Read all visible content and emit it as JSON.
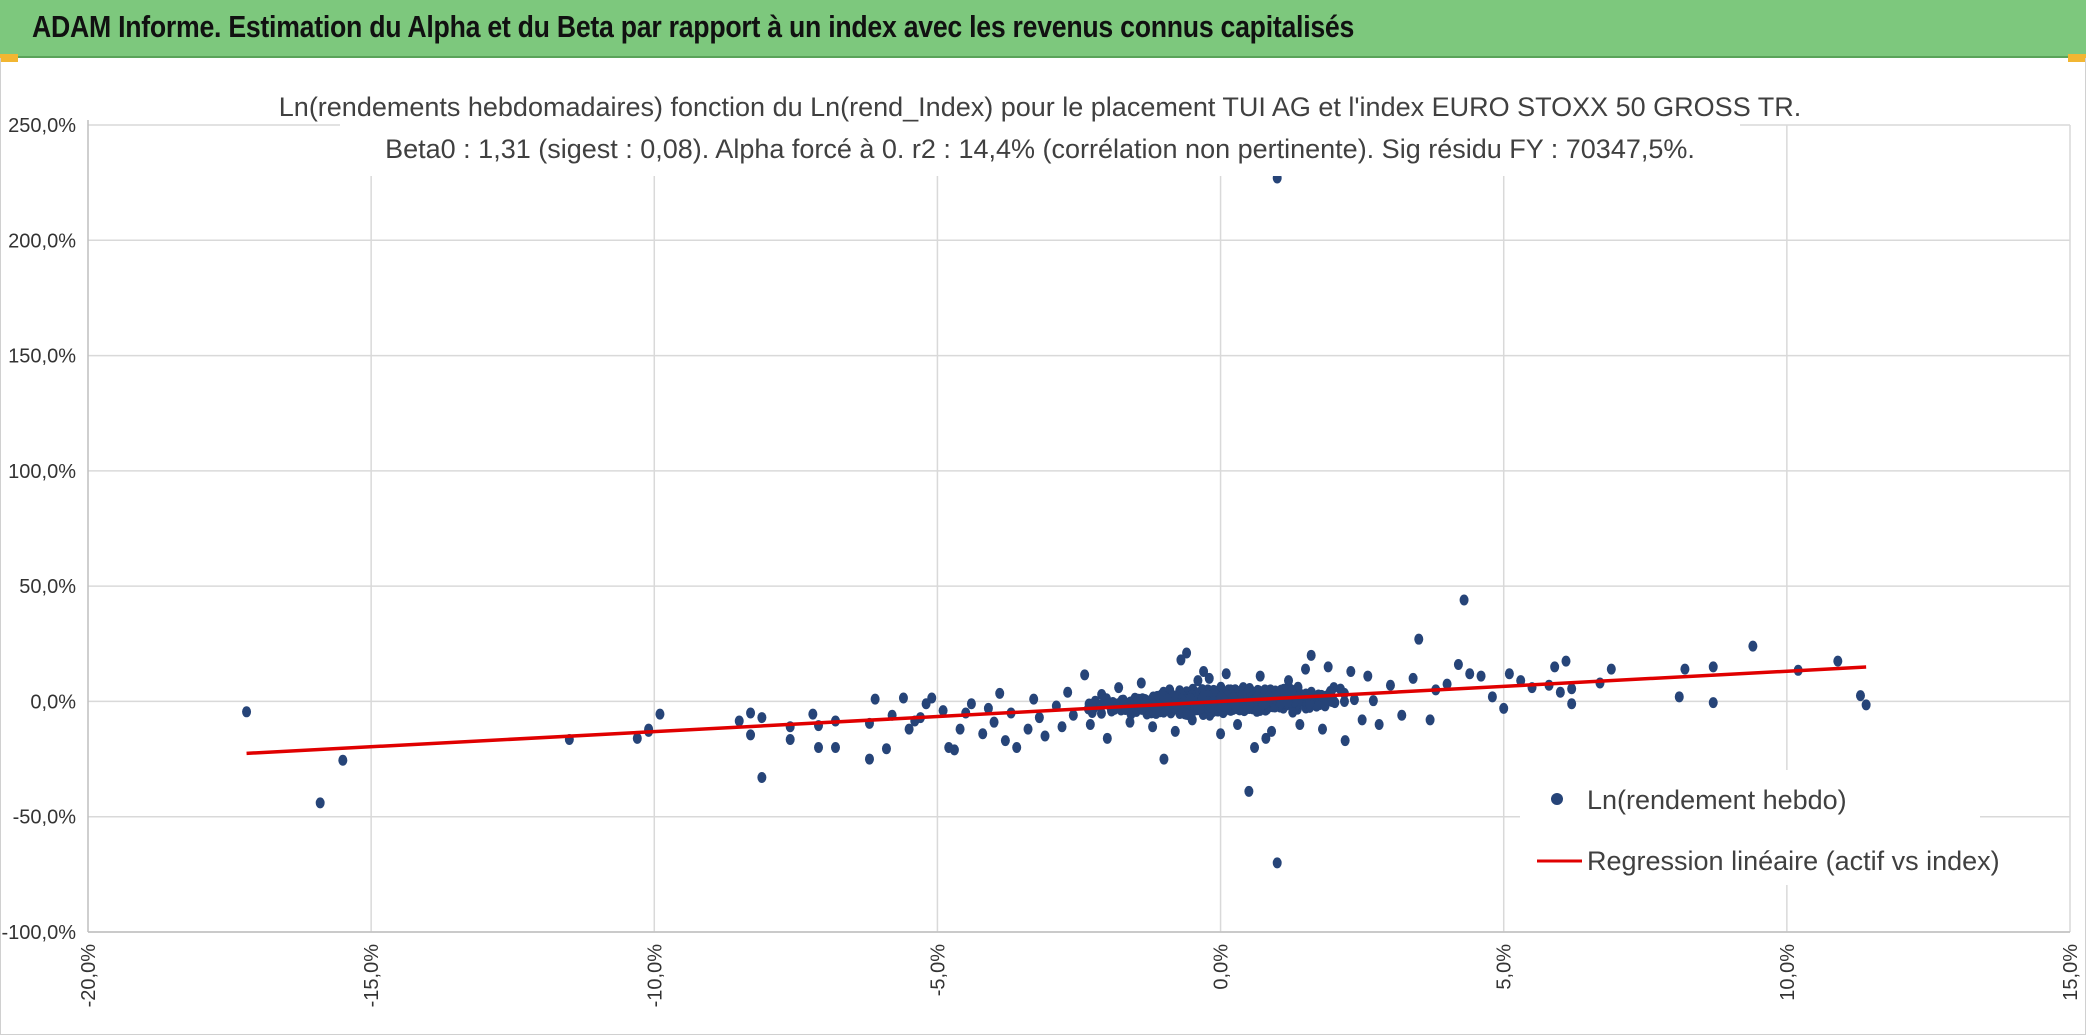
{
  "header": {
    "title": "ADAM Informe. Estimation du Alpha et du Beta par rapport à un index avec les revenus connus capitalisés"
  },
  "colors": {
    "banner": "#7dc87d",
    "points": "#264478",
    "regression": "#e00000",
    "grid": "#d9d9d9"
  },
  "chart_data": {
    "type": "scatter",
    "title_line1": "Ln(rendements hebdomadaires) fonction du Ln(rend_Index) pour le placement TUI AG et l'index EURO STOXX 50 GROSS TR.",
    "title_line2": "Beta0 : 1,31 (sigest : 0,08). Alpha forcé à 0. r2 : 14,4% (corrélation non pertinente). Sig résidu FY : 70347,5%.",
    "x_range": [
      -0.2,
      0.15
    ],
    "y_range": [
      -1.0,
      2.5
    ],
    "x_ticks": [
      "-20,0%",
      "-15,0%",
      "-10,0%",
      "-5,0%",
      "0,0%",
      "5,0%",
      "10,0%",
      "15,0%"
    ],
    "y_ticks": [
      "250,0%",
      "200,0%",
      "150,0%",
      "100,0%",
      "50,0%",
      "0,0%",
      "-50,0%",
      "-100,0%"
    ],
    "grid": true,
    "legend_position": "bottom-right",
    "series": [
      {
        "name": "Ln(rendement hebdo)",
        "kind": "scatter",
        "points": [
          [
            -0.172,
            -0.045
          ],
          [
            -0.159,
            -0.44
          ],
          [
            -0.155,
            -0.255
          ],
          [
            -0.115,
            -0.165
          ],
          [
            -0.103,
            -0.16
          ],
          [
            -0.101,
            -0.13
          ],
          [
            -0.101,
            -0.12
          ],
          [
            -0.099,
            -0.055
          ],
          [
            -0.085,
            -0.085
          ],
          [
            -0.083,
            -0.145
          ],
          [
            -0.083,
            -0.05
          ],
          [
            -0.081,
            -0.07
          ],
          [
            -0.081,
            -0.33
          ],
          [
            -0.076,
            -0.11
          ],
          [
            -0.076,
            -0.165
          ],
          [
            -0.072,
            -0.055
          ],
          [
            -0.071,
            -0.105
          ],
          [
            -0.071,
            -0.2
          ],
          [
            -0.068,
            -0.085
          ],
          [
            -0.068,
            -0.2
          ],
          [
            -0.062,
            -0.095
          ],
          [
            -0.062,
            -0.25
          ],
          [
            -0.061,
            0.01
          ],
          [
            -0.059,
            -0.205
          ],
          [
            -0.058,
            -0.06
          ],
          [
            -0.056,
            0.015
          ],
          [
            -0.055,
            -0.12
          ],
          [
            -0.054,
            -0.085
          ],
          [
            -0.053,
            -0.07
          ],
          [
            -0.052,
            -0.01
          ],
          [
            -0.051,
            0.015
          ],
          [
            -0.049,
            -0.04
          ],
          [
            -0.048,
            -0.2
          ],
          [
            -0.047,
            -0.21
          ],
          [
            -0.046,
            -0.12
          ],
          [
            -0.045,
            -0.05
          ],
          [
            -0.044,
            -0.01
          ],
          [
            -0.042,
            -0.14
          ],
          [
            -0.041,
            -0.03
          ],
          [
            -0.04,
            -0.09
          ],
          [
            -0.039,
            0.035
          ],
          [
            -0.038,
            -0.17
          ],
          [
            -0.037,
            -0.05
          ],
          [
            -0.036,
            -0.2
          ],
          [
            -0.034,
            -0.12
          ],
          [
            -0.033,
            0.01
          ],
          [
            -0.032,
            -0.07
          ],
          [
            -0.031,
            -0.15
          ],
          [
            -0.029,
            -0.02
          ],
          [
            -0.028,
            -0.11
          ],
          [
            -0.027,
            0.04
          ],
          [
            -0.026,
            -0.06
          ],
          [
            -0.024,
            0.115
          ],
          [
            -0.023,
            -0.1
          ],
          [
            -0.021,
            0.03
          ],
          [
            -0.02,
            -0.16
          ],
          [
            -0.018,
            0.06
          ],
          [
            -0.016,
            -0.09
          ],
          [
            -0.014,
            0.08
          ],
          [
            -0.012,
            -0.11
          ],
          [
            -0.01,
            -0.25
          ],
          [
            -0.009,
            0.05
          ],
          [
            -0.008,
            -0.13
          ],
          [
            -0.007,
            0.18
          ],
          [
            -0.006,
            0.21
          ],
          [
            -0.005,
            -0.08
          ],
          [
            -0.004,
            0.09
          ],
          [
            -0.003,
            0.13
          ],
          [
            -0.002,
            0.1
          ],
          [
            0.0,
            -0.14
          ],
          [
            0.001,
            0.12
          ],
          [
            0.003,
            -0.1
          ],
          [
            0.004,
            0.06
          ],
          [
            0.005,
            -0.39
          ],
          [
            0.006,
            -0.2
          ],
          [
            0.007,
            0.11
          ],
          [
            0.008,
            -0.16
          ],
          [
            0.009,
            -0.13
          ],
          [
            0.01,
            2.27
          ],
          [
            0.01,
            -0.7
          ],
          [
            0.012,
            0.09
          ],
          [
            0.014,
            -0.1
          ],
          [
            0.015,
            0.14
          ],
          [
            0.016,
            0.2
          ],
          [
            0.018,
            -0.12
          ],
          [
            0.019,
            0.15
          ],
          [
            0.02,
            0.06
          ],
          [
            0.022,
            -0.17
          ],
          [
            0.023,
            0.13
          ],
          [
            0.025,
            -0.08
          ],
          [
            0.026,
            0.11
          ],
          [
            0.028,
            -0.1
          ],
          [
            0.03,
            0.07
          ],
          [
            0.032,
            -0.06
          ],
          [
            0.034,
            0.1
          ],
          [
            0.035,
            0.27
          ],
          [
            0.037,
            -0.08
          ],
          [
            0.038,
            0.05
          ],
          [
            0.04,
            0.075
          ],
          [
            0.042,
            0.16
          ],
          [
            0.043,
            0.44
          ],
          [
            0.044,
            0.12
          ],
          [
            0.046,
            0.11
          ],
          [
            0.048,
            0.02
          ],
          [
            0.05,
            -0.03
          ],
          [
            0.051,
            0.12
          ],
          [
            0.053,
            0.09
          ],
          [
            0.055,
            0.06
          ],
          [
            0.058,
            0.07
          ],
          [
            0.059,
            0.15
          ],
          [
            0.06,
            0.04
          ],
          [
            0.061,
            0.175
          ],
          [
            0.062,
            -0.01
          ],
          [
            0.062,
            0.055
          ],
          [
            0.067,
            0.08
          ],
          [
            0.069,
            0.14
          ],
          [
            0.081,
            0.02
          ],
          [
            0.082,
            0.14
          ],
          [
            0.087,
            0.15
          ],
          [
            0.087,
            -0.005
          ],
          [
            0.094,
            0.24
          ],
          [
            0.102,
            0.135
          ],
          [
            0.109,
            0.175
          ],
          [
            0.113,
            0.025
          ],
          [
            0.114,
            -0.015
          ]
        ]
      },
      {
        "name": "Regression linéaire (actif vs index)",
        "kind": "line",
        "slope": 1.31,
        "intercept": 0.0,
        "x_extent": [
          -0.172,
          0.114
        ]
      }
    ],
    "dense_cluster": {
      "x_center": 0.0,
      "x_spread": 0.022,
      "y_slope": 1.31,
      "y_noise": 0.045,
      "count": 1400
    }
  }
}
